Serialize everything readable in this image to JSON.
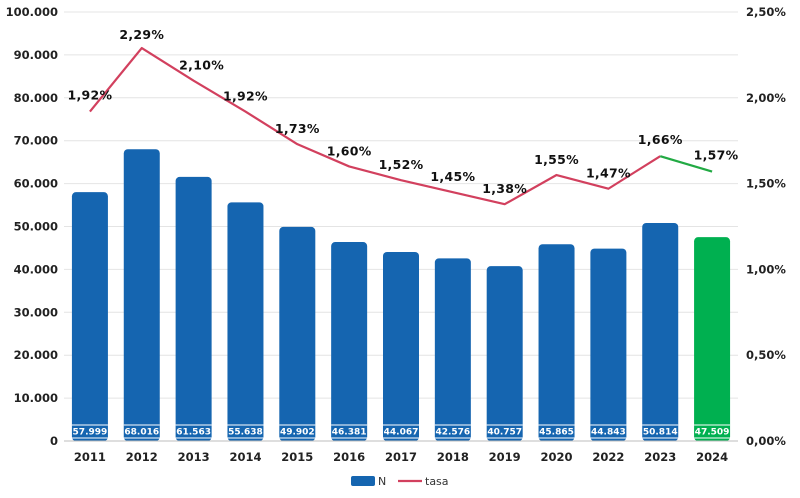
{
  "chart_data": {
    "type": "bar",
    "categories": [
      "2011",
      "2012",
      "2013",
      "2014",
      "2015",
      "2016",
      "2017",
      "2018",
      "2019",
      "2020",
      "2022",
      "2023",
      "2024"
    ],
    "series": [
      {
        "name": "N",
        "kind": "bar",
        "axis": "left",
        "values": [
          57999,
          68016,
          61563,
          55638,
          49902,
          46381,
          44067,
          42576,
          40757,
          45865,
          44843,
          50814,
          47509
        ],
        "value_labels": [
          "57.999",
          "68.016",
          "61.563",
          "55.638",
          "49.902",
          "46.381",
          "44.067",
          "42.576",
          "40.757",
          "45.865",
          "44.843",
          "50.814",
          "47.509"
        ],
        "color": "#1565b0",
        "highlight_color": "#00b050",
        "highlight_index": 12
      },
      {
        "name": "tasa",
        "kind": "line",
        "axis": "right",
        "values": [
          1.92,
          2.29,
          2.1,
          1.92,
          1.73,
          1.6,
          1.52,
          1.45,
          1.38,
          1.55,
          1.47,
          1.66,
          1.57
        ],
        "value_labels": [
          "1,92%",
          "2,29%",
          "2,10%",
          "1,92%",
          "1,73%",
          "1,60%",
          "1,52%",
          "1,45%",
          "1,38%",
          "1,55%",
          "1,47%",
          "1,66%",
          "1,57%"
        ],
        "color": "#d2405e",
        "highlight_color": "#22aa44"
      }
    ],
    "y_left": {
      "ylim": [
        0,
        100000
      ],
      "ticks": [
        0,
        10000,
        20000,
        30000,
        40000,
        50000,
        60000,
        70000,
        80000,
        90000,
        100000
      ],
      "tick_labels": [
        "0",
        "10.000",
        "20.000",
        "30.000",
        "40.000",
        "50.000",
        "60.000",
        "70.000",
        "80.000",
        "90.000",
        "100.000"
      ]
    },
    "y_right": {
      "ylim": [
        0,
        2.5
      ],
      "ticks": [
        0,
        0.5,
        1.0,
        1.5,
        2.0,
        2.5
      ],
      "tick_labels": [
        "0,00%",
        "0,50%",
        "1,00%",
        "1,50%",
        "2,00%",
        "2,50%"
      ]
    },
    "grid": true,
    "legend": {
      "position": "bottom-center",
      "items": [
        {
          "label": "N",
          "symbol": "bar",
          "color": "#1565b0"
        },
        {
          "label": "tasa",
          "symbol": "line",
          "color": "#d2405e"
        }
      ]
    },
    "title": "",
    "xlabel": "",
    "ylabel": ""
  }
}
